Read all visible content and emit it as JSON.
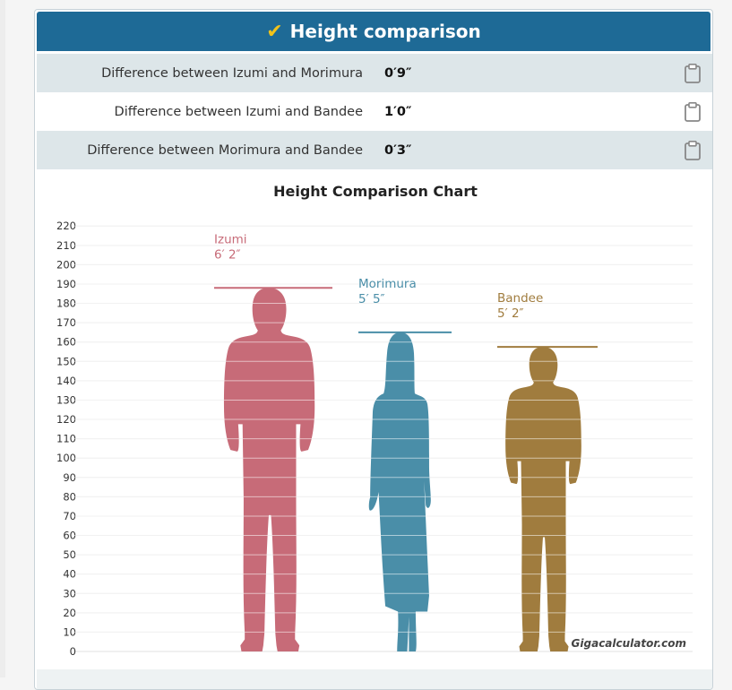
{
  "header": {
    "title": "Height comparison",
    "check_icon": "check-icon"
  },
  "differences": [
    {
      "label": "Difference between Izumi and Morimura",
      "value": "0′9″"
    },
    {
      "label": "Difference between Izumi and Bandee",
      "value": "1′0″"
    },
    {
      "label": "Difference between Morimura and Bandee",
      "value": "0′3″"
    }
  ],
  "chart_data": {
    "type": "bar",
    "title": "Height Comparison Chart",
    "categories": [
      "Izumi",
      "Morimura",
      "Bandee"
    ],
    "values": [
      188,
      165,
      157.5
    ],
    "display_labels": [
      "6′ 2″",
      "5′ 5″",
      "5′ 2″"
    ],
    "colors": [
      "#c76b78",
      "#4a8ea8",
      "#a07c3e"
    ],
    "yticks": [
      0,
      10,
      20,
      30,
      40,
      50,
      60,
      70,
      80,
      90,
      100,
      110,
      120,
      130,
      140,
      150,
      160,
      170,
      180,
      190,
      200,
      210,
      220
    ],
    "ylim": [
      0,
      220
    ],
    "grid": true,
    "watermark": "Gigacalculator.com"
  }
}
